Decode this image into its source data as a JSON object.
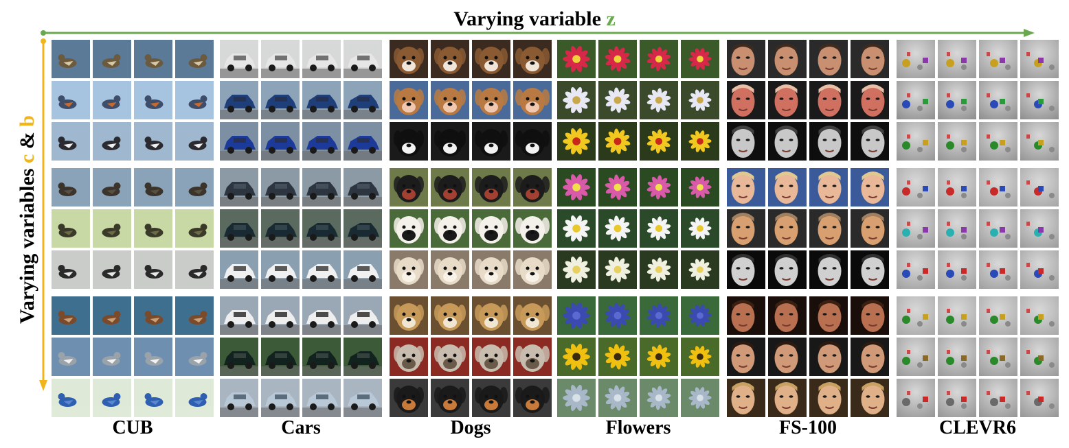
{
  "figure": {
    "top_title_prefix": "Varying variable ",
    "top_title_var": "z",
    "side_title_prefix": "Varying variables ",
    "side_title_var_c": "c",
    "side_title_amp": " & ",
    "side_title_var_b": "b",
    "colors": {
      "z_arrow": "#6aa84f",
      "cb_arrow": "#f1b51c"
    }
  },
  "datasets": [
    {
      "label": "CUB",
      "kind": "bird",
      "rows": [
        {
          "bg": "#5b7a98",
          "fg": "#6b5a3e",
          "accent": "#d9c8a4"
        },
        {
          "bg": "#a6c4e0",
          "fg": "#3e4d6a",
          "accent": "#c86a2e"
        },
        {
          "bg": "#9fb8cf",
          "fg": "#2a2a30",
          "accent": "#f0f0f0"
        },
        {
          "bg": "#8aa3b8",
          "fg": "#3a342c",
          "accent": "#5a5040"
        },
        {
          "bg": "#c9d9a6",
          "fg": "#3a3a28",
          "accent": "#6d6a48"
        },
        {
          "bg": "#c9ccc8",
          "fg": "#2a2a2a",
          "accent": "#e8e8e8"
        },
        {
          "bg": "#3f6f8f",
          "fg": "#7a4a2a",
          "accent": "#c9a07a"
        },
        {
          "bg": "#6f8fb0",
          "fg": "#9aa2aa",
          "accent": "#f2f2f2"
        },
        {
          "bg": "#dfe9d8",
          "fg": "#2e5fb0",
          "accent": "#5a88d0"
        }
      ]
    },
    {
      "label": "Cars",
      "kind": "car",
      "rows": [
        {
          "bg": "#d7d8d8",
          "fg": "#e6e6e6",
          "accent": "#555555"
        },
        {
          "bg": "#8da3b8",
          "fg": "#1f3f7a",
          "accent": "#28304a"
        },
        {
          "bg": "#7d8fa3",
          "fg": "#1b3a9a",
          "accent": "#2a2f45"
        },
        {
          "bg": "#8c9aa6",
          "fg": "#2c3540",
          "accent": "#4a5560"
        },
        {
          "bg": "#5a6a5e",
          "fg": "#1a2a32",
          "accent": "#3a4a52"
        },
        {
          "bg": "#8aa0b0",
          "fg": "#f0f0f0",
          "accent": "#333333"
        },
        {
          "bg": "#9aa8b5",
          "fg": "#eeeeee",
          "accent": "#222222"
        },
        {
          "bg": "#3c5a38",
          "fg": "#12221e",
          "accent": "#3d4a44"
        },
        {
          "bg": "#a9b6c2",
          "fg": "#b8c8d6",
          "accent": "#445566"
        }
      ]
    },
    {
      "label": "Dogs",
      "kind": "dog",
      "rows": [
        {
          "bg": "#3a2a20",
          "fg": "#8a5a32",
          "accent": "#f0e6da"
        },
        {
          "bg": "#4a6a9a",
          "fg": "#b87a42",
          "accent": "#f0c8b0"
        },
        {
          "bg": "#1a1a1a",
          "fg": "#0f0f0f",
          "accent": "#f2f2f2"
        },
        {
          "bg": "#6f7a4a",
          "fg": "#1c1c1c",
          "accent": "#a24032"
        },
        {
          "bg": "#4a6a3a",
          "fg": "#f4f0ea",
          "accent": "#1a1a1a"
        },
        {
          "bg": "#8a7a6a",
          "fg": "#e8dcc8",
          "accent": "#f8f2e8"
        },
        {
          "bg": "#6a5030",
          "fg": "#c89a5a",
          "accent": "#f0e6d2"
        },
        {
          "bg": "#8a2a22",
          "fg": "#c8bcae",
          "accent": "#6a5a4a"
        },
        {
          "bg": "#3a3a3a",
          "fg": "#1a1a1a",
          "accent": "#c87a3a"
        }
      ]
    },
    {
      "label": "Flowers",
      "kind": "flower",
      "rows": [
        {
          "bg": "#3a5a2a",
          "fg": "#d8284a",
          "accent": "#f0d23a"
        },
        {
          "bg": "#3a4a2a",
          "fg": "#e8e8f4",
          "accent": "#c8a84a"
        },
        {
          "bg": "#2a3a1a",
          "fg": "#f0c820",
          "accent": "#c8281a"
        },
        {
          "bg": "#2a4a22",
          "fg": "#d85aa8",
          "accent": "#f0e04a"
        },
        {
          "bg": "#2a4a2a",
          "fg": "#f4f4f4",
          "accent": "#e8c82a"
        },
        {
          "bg": "#2a3a20",
          "fg": "#f0f0e0",
          "accent": "#e8d060"
        },
        {
          "bg": "#3a6a3a",
          "fg": "#3a4ab0",
          "accent": "#5a6ad0"
        },
        {
          "bg": "#4a6a2a",
          "fg": "#f0c010",
          "accent": "#3a2a10"
        },
        {
          "bg": "#6a8a6a",
          "fg": "#a8b8c8",
          "accent": "#d8e0e8"
        }
      ]
    },
    {
      "label": "FS-100",
      "kind": "face",
      "rows": [
        {
          "bg": "#2a2a2a",
          "fg": "#c89070",
          "accent": "#3a2a20"
        },
        {
          "bg": "#1a1a1a",
          "fg": "#d07060",
          "accent": "#e8c0a8"
        },
        {
          "bg": "#0e0e0e",
          "fg": "#c8c8c8",
          "accent": "#404040"
        },
        {
          "bg": "#3a5a9a",
          "fg": "#e8b898",
          "accent": "#e0c890"
        },
        {
          "bg": "#2a2a2a",
          "fg": "#d8a070",
          "accent": "#a08060"
        },
        {
          "bg": "#0a0a0a",
          "fg": "#d0d0d0",
          "accent": "#303030"
        },
        {
          "bg": "#1a0e0a",
          "fg": "#b87050",
          "accent": "#3a2010"
        },
        {
          "bg": "#181818",
          "fg": "#d09a78",
          "accent": "#2a1a10"
        },
        {
          "bg": "#3a2a1a",
          "fg": "#e0b088",
          "accent": "#c8a060"
        }
      ]
    },
    {
      "label": "CLEVR6",
      "kind": "scene",
      "rows": [
        {
          "bg": "#9a9a9a",
          "fg": "#c8a020",
          "accent": "#8a3aa8"
        },
        {
          "bg": "#8e8e8e",
          "fg": "#2a4ab8",
          "accent": "#2a9a3a"
        },
        {
          "bg": "#959595",
          "fg": "#2a8a2a",
          "accent": "#c8a020"
        },
        {
          "bg": "#a6a6a6",
          "fg": "#c82a2a",
          "accent": "#2a4ab8"
        },
        {
          "bg": "#9c9c9c",
          "fg": "#2ab0b0",
          "accent": "#8a3aa8"
        },
        {
          "bg": "#a0a0a0",
          "fg": "#2a4ab8",
          "accent": "#c82a2a"
        },
        {
          "bg": "#a8a8a8",
          "fg": "#2a8a2a",
          "accent": "#c8a020"
        },
        {
          "bg": "#9a9a9a",
          "fg": "#2a8a2a",
          "accent": "#8a6a2a"
        },
        {
          "bg": "#969696",
          "fg": "#6a6a6a",
          "accent": "#c82a2a"
        }
      ]
    }
  ]
}
